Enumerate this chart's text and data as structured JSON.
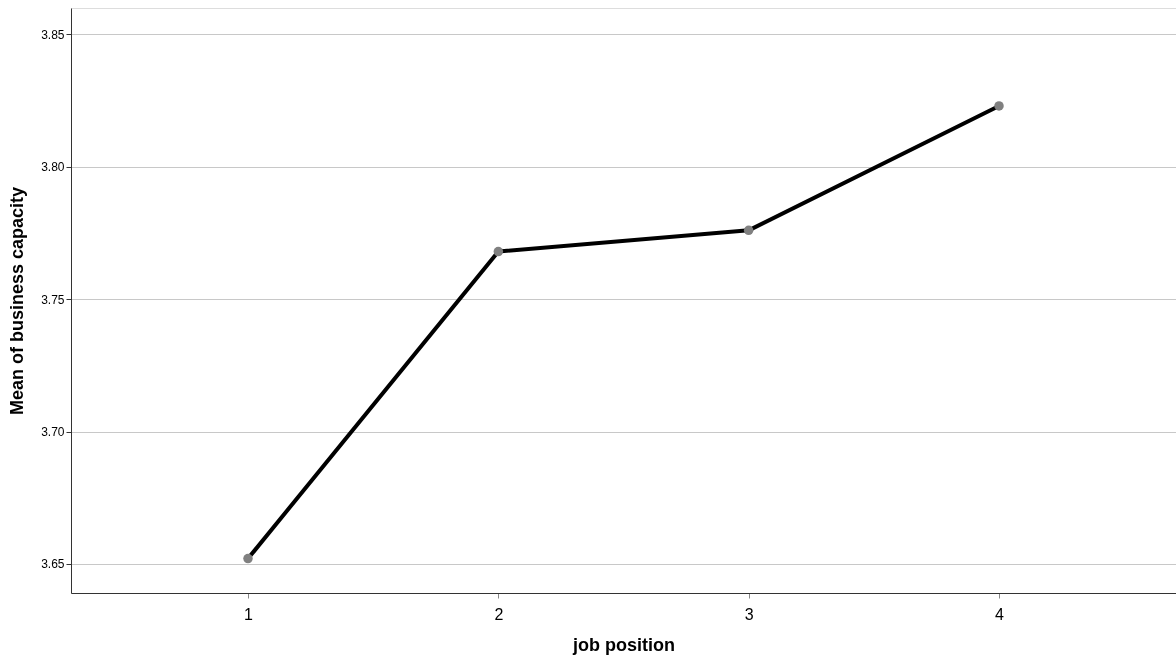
{
  "chart_data": {
    "type": "line",
    "xlabel": "job position",
    "ylabel": "Mean of business capacity",
    "categories": [
      "1",
      "2",
      "3",
      "4"
    ],
    "series": [
      {
        "color": "#000000",
        "values": [
          3.652,
          3.768,
          3.776,
          3.823
        ]
      }
    ],
    "ylim": [
      3.639,
      3.86
    ],
    "yticks": [
      3.65,
      {
        "value": 3.7,
        "label": "3.70"
      },
      3.75,
      {
        "value": 3.8,
        "label": "3.80"
      },
      3.85
    ],
    "grid": "y",
    "marker": "circle",
    "line_style": "solid"
  }
}
